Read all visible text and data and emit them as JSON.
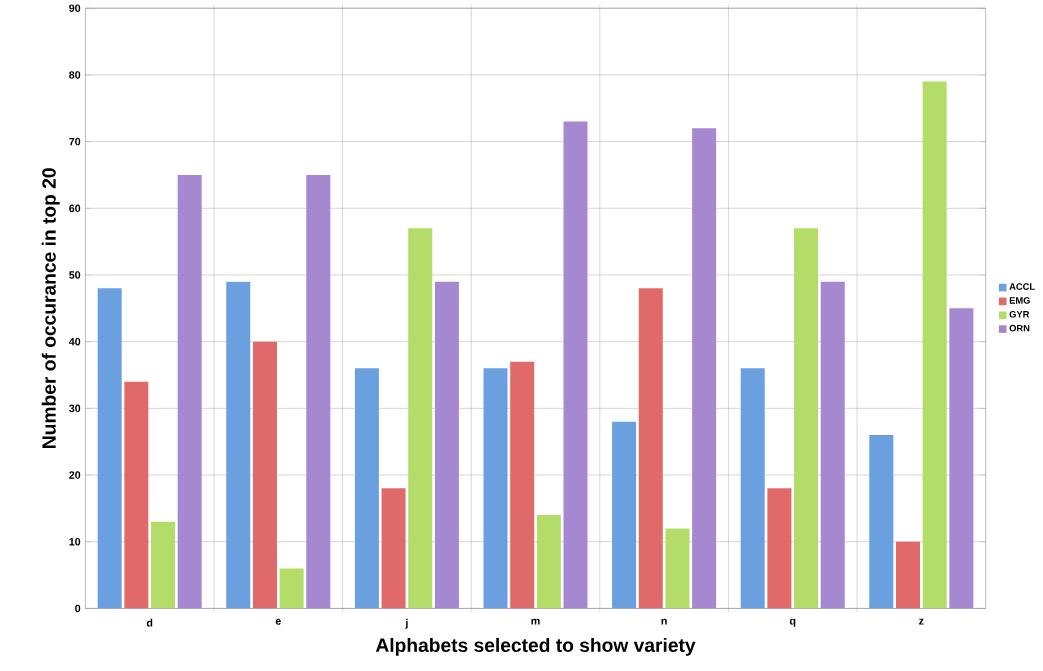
{
  "chart_data": {
    "type": "bar",
    "xlabel": "Alphabets selected to show variety",
    "ylabel": "Number of occurance in top 20",
    "categories": [
      "d",
      "e",
      "j",
      "m",
      "n",
      "q",
      "z"
    ],
    "series": [
      {
        "name": "ACCL",
        "color": "#6a9fe0",
        "values": [
          48,
          49,
          36,
          36,
          28,
          36,
          26
        ]
      },
      {
        "name": "EMG",
        "color": "#e06a6a",
        "values": [
          34,
          40,
          18,
          37,
          48,
          18,
          10
        ]
      },
      {
        "name": "GYR",
        "color": "#b4dc68",
        "values": [
          13,
          6,
          57,
          14,
          12,
          57,
          79
        ]
      },
      {
        "name": "ORN",
        "color": "#a688d0",
        "values": [
          65,
          65,
          49,
          73,
          72,
          49,
          45
        ]
      }
    ],
    "ylim": [
      0,
      90
    ],
    "yticks": [
      0,
      10,
      20,
      30,
      40,
      50,
      60,
      70,
      80,
      90
    ],
    "grid": true,
    "legend": "right"
  }
}
